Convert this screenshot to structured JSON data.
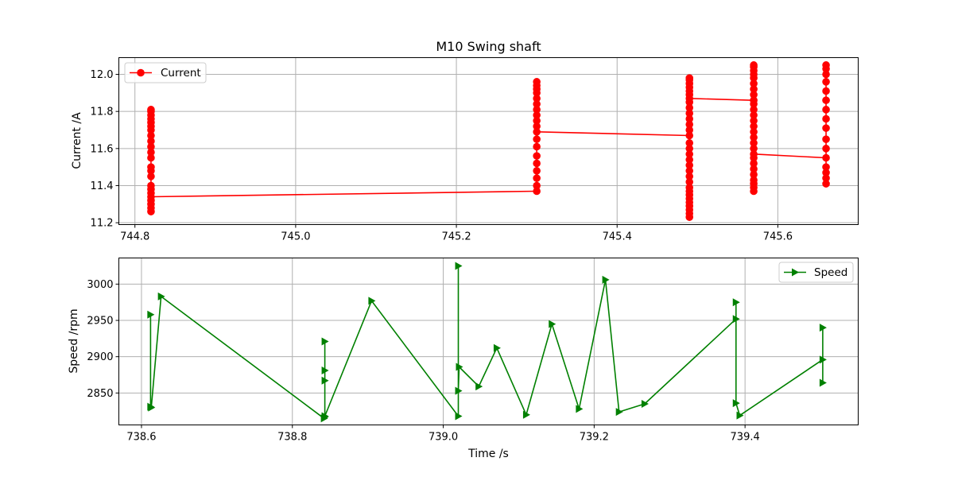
{
  "figure": {
    "title": "M10 Swing shaft",
    "xlabel": "Time /s"
  },
  "chart_data": [
    {
      "type": "line",
      "title": "M10 Swing shaft",
      "xlabel": "",
      "ylabel": "Current /A",
      "xlim": [
        744.78,
        745.7
      ],
      "ylim": [
        11.19,
        12.09
      ],
      "xticks": [
        744.8,
        745.0,
        745.2,
        745.4,
        745.6
      ],
      "yticks": [
        11.2,
        11.4,
        11.6,
        11.8,
        12.0
      ],
      "grid": true,
      "legend_position": "upper left",
      "series": [
        {
          "name": "Current",
          "color": "#ff0000",
          "marker": "circle",
          "line_segments": [
            [
              [
                744.82,
                11.34
              ],
              [
                745.3,
                11.37
              ]
            ],
            [
              [
                745.3,
                11.69
              ],
              [
                745.49,
                11.67
              ]
            ],
            [
              [
                745.49,
                11.87
              ],
              [
                745.57,
                11.86
              ]
            ],
            [
              [
                745.57,
                11.57
              ],
              [
                745.66,
                11.55
              ]
            ]
          ],
          "columns": [
            {
              "x": 744.82,
              "y": [
                11.26,
                11.28,
                11.3,
                11.32,
                11.34,
                11.36,
                11.38,
                11.4,
                11.45,
                11.48,
                11.5,
                11.55,
                11.58,
                11.61,
                11.64,
                11.67,
                11.7,
                11.72,
                11.74,
                11.76,
                11.78,
                11.8,
                11.81
              ]
            },
            {
              "x": 745.3,
              "y": [
                11.37,
                11.4,
                11.44,
                11.48,
                11.52,
                11.56,
                11.61,
                11.65,
                11.69,
                11.72,
                11.75,
                11.78,
                11.81,
                11.84,
                11.87,
                11.9,
                11.92,
                11.94,
                11.96
              ]
            },
            {
              "x": 745.49,
              "y": [
                11.23,
                11.25,
                11.27,
                11.29,
                11.31,
                11.33,
                11.35,
                11.37,
                11.39,
                11.42,
                11.45,
                11.48,
                11.51,
                11.54,
                11.57,
                11.6,
                11.63,
                11.67,
                11.7,
                11.73,
                11.76,
                11.79,
                11.82,
                11.85,
                11.87,
                11.89,
                11.91,
                11.93,
                11.95,
                11.97,
                11.98
              ]
            },
            {
              "x": 745.57,
              "y": [
                11.37,
                11.39,
                11.41,
                11.43,
                11.46,
                11.49,
                11.52,
                11.55,
                11.57,
                11.6,
                11.63,
                11.66,
                11.69,
                11.72,
                11.75,
                11.78,
                11.81,
                11.84,
                11.86,
                11.89,
                11.92,
                11.95,
                11.98,
                12.0,
                12.02,
                12.04,
                12.05
              ]
            },
            {
              "x": 745.66,
              "y": [
                11.41,
                11.44,
                11.47,
                11.5,
                11.55,
                11.6,
                11.65,
                11.71,
                11.76,
                11.81,
                11.86,
                11.91,
                11.96,
                12.0,
                12.03,
                12.05
              ]
            }
          ]
        }
      ]
    },
    {
      "type": "line",
      "title": "",
      "xlabel": "Time /s",
      "ylabel": "Speed /rpm",
      "xlim": [
        738.57,
        739.55
      ],
      "ylim": [
        2806,
        3036
      ],
      "xticks": [
        738.6,
        738.8,
        739.0,
        739.2,
        739.4
      ],
      "yticks": [
        2850,
        2900,
        2950,
        3000
      ],
      "grid": true,
      "legend_position": "upper right",
      "series": [
        {
          "name": "Speed",
          "color": "#008000",
          "marker": "triangle-right",
          "points": [
            [
              738.612,
              2958
            ],
            [
              738.612,
              2831
            ],
            [
              738.613,
              2830
            ],
            [
              738.626,
              2983
            ],
            [
              738.842,
              2815
            ],
            [
              738.843,
              2817
            ],
            [
              738.843,
              2921
            ],
            [
              738.843,
              2881
            ],
            [
              738.843,
              2867
            ],
            [
              738.843,
              2818
            ],
            [
              738.905,
              2977
            ],
            [
              739.02,
              2818
            ],
            [
              739.02,
              3025
            ],
            [
              739.02,
              2853
            ],
            [
              739.021,
              2886
            ],
            [
              739.047,
              2859
            ],
            [
              739.071,
              2912
            ],
            [
              739.11,
              2820
            ],
            [
              739.144,
              2945
            ],
            [
              739.18,
              2828
            ],
            [
              739.215,
              3006
            ],
            [
              739.233,
              2824
            ],
            [
              739.267,
              2835
            ],
            [
              739.388,
              2952
            ],
            [
              739.388,
              2975
            ],
            [
              739.388,
              2836
            ],
            [
              739.393,
              2819
            ],
            [
              739.503,
              2896
            ],
            [
              739.503,
              2940
            ],
            [
              739.503,
              2864
            ]
          ]
        }
      ]
    }
  ]
}
